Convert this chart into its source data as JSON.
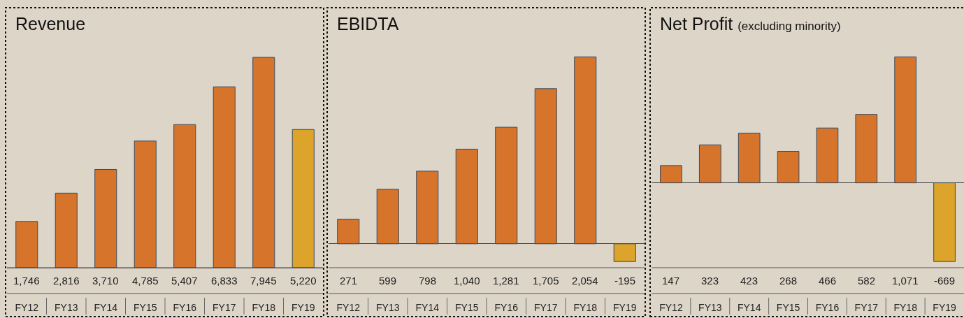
{
  "chart_data": [
    {
      "type": "bar",
      "title": "Revenue",
      "categories": [
        "FY12",
        "FY13",
        "FY14",
        "FY15",
        "FY16",
        "FY17",
        "FY18",
        "FY19"
      ],
      "values": [
        1746,
        2816,
        3710,
        4785,
        5407,
        6833,
        7945,
        5220
      ],
      "value_labels": [
        "1,746",
        "2,816",
        "3,710",
        "4,785",
        "5,407",
        "6,833",
        "7,945",
        "5,220"
      ],
      "colors": [
        "#d5742a",
        "#d5742a",
        "#d5742a",
        "#d5742a",
        "#d5742a",
        "#d5742a",
        "#d5742a",
        "#dca42a"
      ]
    },
    {
      "type": "bar",
      "title": "EBIDTA",
      "categories": [
        "FY12",
        "FY13",
        "FY14",
        "FY15",
        "FY16",
        "FY17",
        "FY18",
        "FY19"
      ],
      "values": [
        271,
        599,
        798,
        1040,
        1281,
        1705,
        2054,
        -195
      ],
      "value_labels": [
        "271",
        "599",
        "798",
        "1,040",
        "1,281",
        "1,705",
        "2,054",
        "-195"
      ],
      "colors": [
        "#d5742a",
        "#d5742a",
        "#d5742a",
        "#d5742a",
        "#d5742a",
        "#d5742a",
        "#d5742a",
        "#dca42a"
      ]
    },
    {
      "type": "bar",
      "title": "Net Profit",
      "subtitle": "(excluding minority)",
      "categories": [
        "FY12",
        "FY13",
        "FY14",
        "FY15",
        "FY16",
        "FY17",
        "FY18",
        "FY19"
      ],
      "values": [
        147,
        323,
        423,
        268,
        466,
        582,
        1071,
        -669
      ],
      "value_labels": [
        "147",
        "323",
        "423",
        "268",
        "466",
        "582",
        "1,071",
        "-669"
      ],
      "colors": [
        "#d5742a",
        "#d5742a",
        "#d5742a",
        "#d5742a",
        "#d5742a",
        "#d5742a",
        "#d5742a",
        "#dca42a"
      ]
    }
  ]
}
